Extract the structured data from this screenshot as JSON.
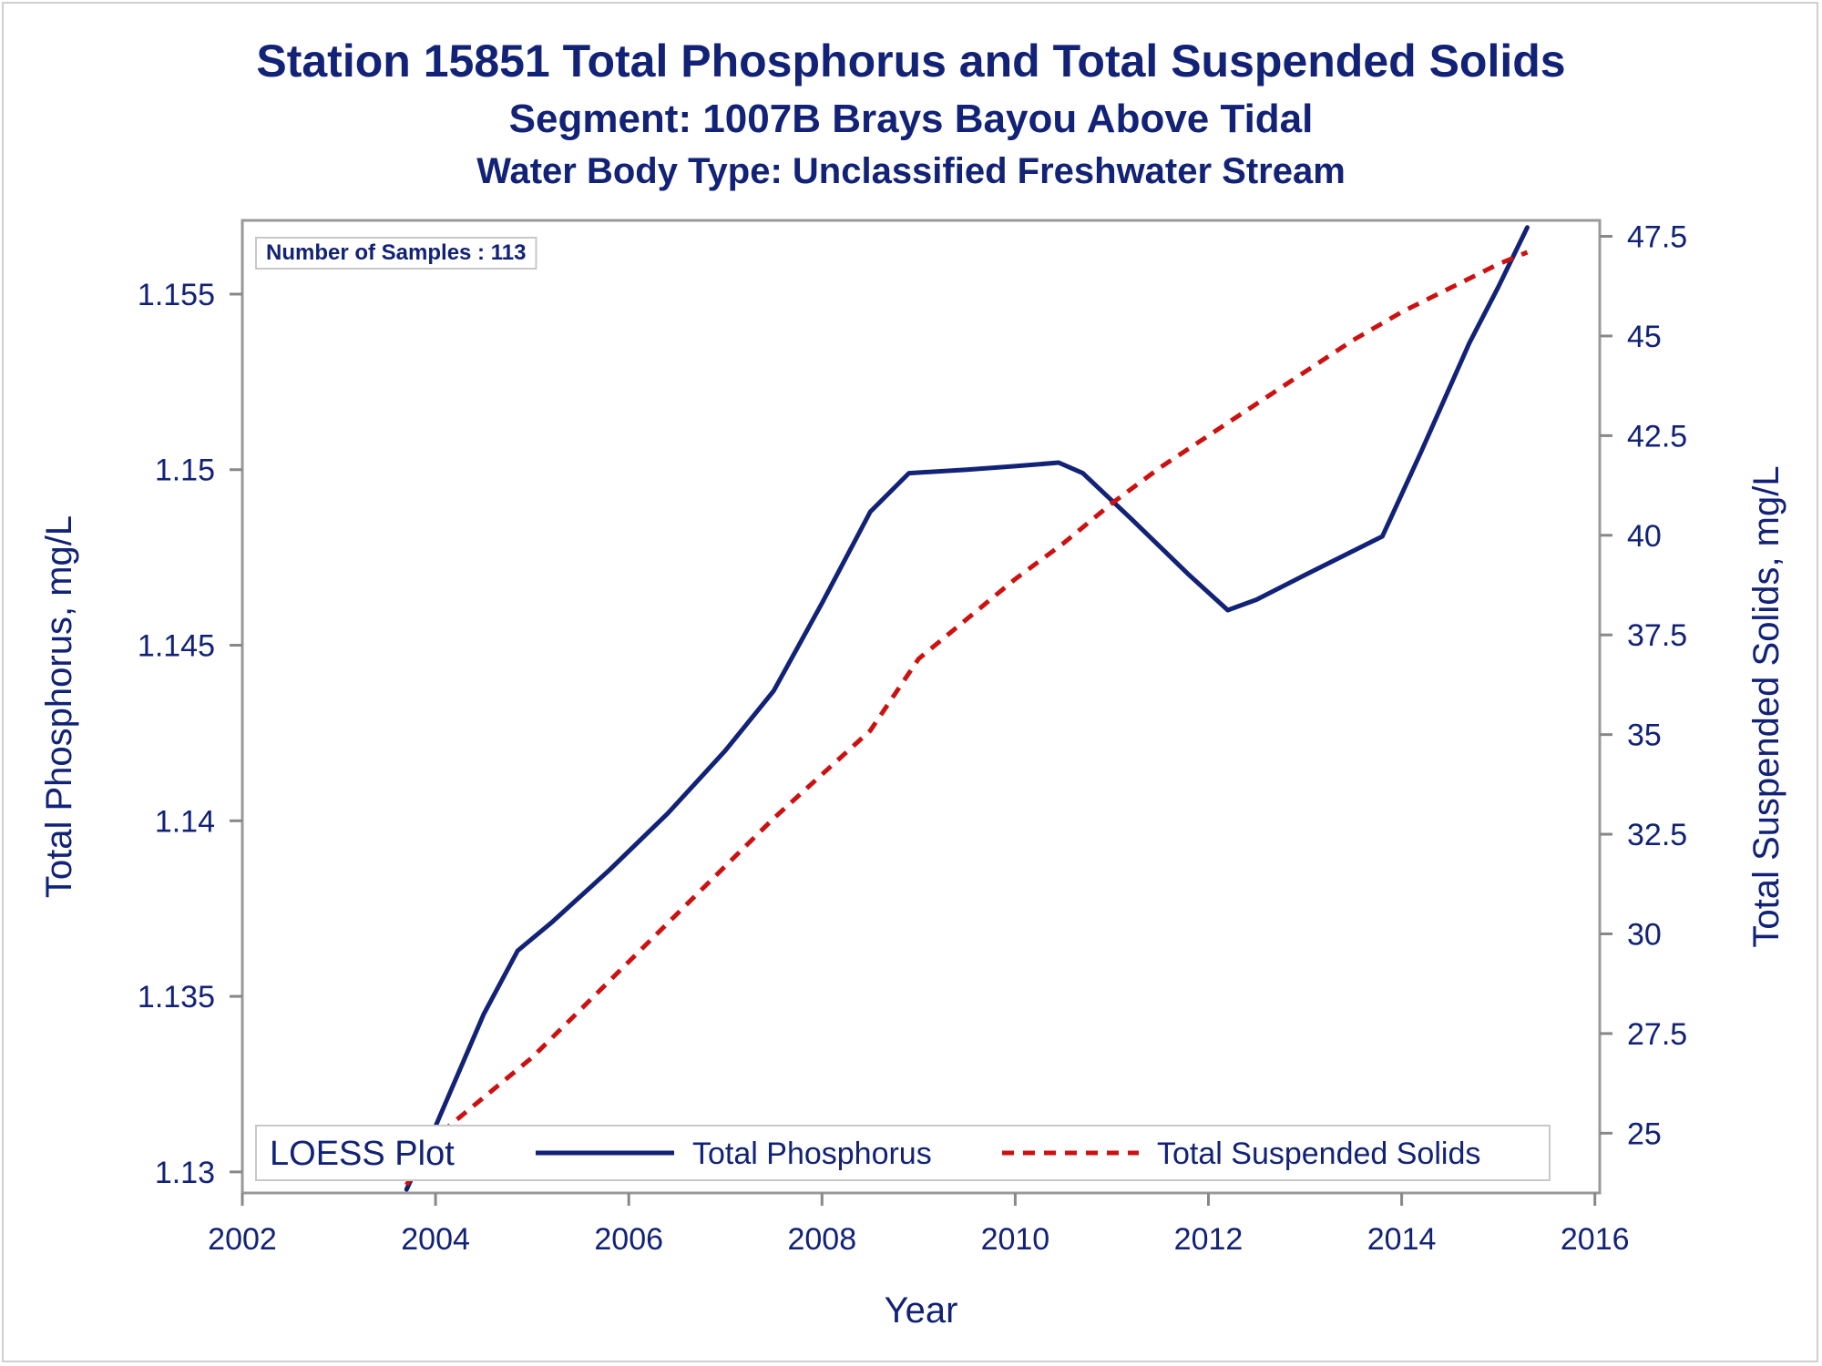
{
  "chart_data": {
    "type": "line",
    "title": "Station 15851  Total Phosphorus and Total Suspended Solids",
    "subtitle": "Segment: 1007B  Brays Bayou Above Tidal",
    "subtitle2": "Water Body Type: Unclassified Freshwater Stream",
    "xlabel": "Year",
    "ylabel_left": "Total Phosphorus, mg/L",
    "ylabel_right": "Total Suspended Solids, mg/L",
    "xlim": [
      2002,
      2016.05
    ],
    "ylim_left": [
      1.1294,
      1.1571
    ],
    "ylim_right": [
      23.5,
      47.9
    ],
    "x_ticks": [
      2002,
      2004,
      2006,
      2008,
      2010,
      2012,
      2014,
      2016
    ],
    "y_left_ticks": [
      "1.13",
      "1.135",
      "1.14",
      "1.145",
      "1.15",
      "1.155"
    ],
    "y_left_tick_values": [
      1.13,
      1.135,
      1.14,
      1.145,
      1.15,
      1.155
    ],
    "y_right_ticks": [
      "25",
      "27.5",
      "30",
      "32.5",
      "35",
      "37.5",
      "40",
      "42.5",
      "45",
      "47.5"
    ],
    "y_right_tick_values": [
      25,
      27.5,
      30,
      32.5,
      35,
      37.5,
      40,
      42.5,
      45,
      47.5
    ],
    "annotation": "Number of Samples : 113",
    "legend": {
      "title": "LOESS Plot",
      "position": "bottom-inside",
      "entries": [
        "Total Phosphorus",
        "Total Suspended Solids"
      ]
    },
    "series": [
      {
        "name": "Total Phosphorus",
        "axis": "left",
        "color": "#112277",
        "style": "solid",
        "x": [
          2003.7,
          2004.0,
          2004.5,
          2004.85,
          2005.2,
          2005.8,
          2006.4,
          2007.0,
          2007.5,
          2008.0,
          2008.5,
          2008.9,
          2009.5,
          2010.0,
          2010.45,
          2010.7,
          2011.2,
          2011.8,
          2012.2,
          2012.5,
          2013.0,
          2013.8,
          2014.2,
          2014.7,
          2015.0,
          2015.3
        ],
        "y": [
          1.1295,
          1.1313,
          1.1345,
          1.1363,
          1.1371,
          1.1386,
          1.1402,
          1.142,
          1.1437,
          1.1462,
          1.1488,
          1.1499,
          1.15,
          1.1501,
          1.1502,
          1.1499,
          1.1486,
          1.147,
          1.146,
          1.1463,
          1.147,
          1.1481,
          1.1505,
          1.1536,
          1.1552,
          1.1569
        ]
      },
      {
        "name": "Total Suspended Solids",
        "axis": "right",
        "color": "#cc1111",
        "style": "dashed",
        "x": [
          2003.7,
          2004.0,
          2004.5,
          2005.0,
          2005.5,
          2006.0,
          2006.5,
          2007.0,
          2007.5,
          2008.0,
          2008.5,
          2009.0,
          2009.5,
          2010.0,
          2010.5,
          2011.0,
          2011.5,
          2012.0,
          2012.5,
          2013.0,
          2013.5,
          2014.0,
          2014.5,
          2015.0,
          2015.3
        ],
        "y": [
          23.7,
          24.9,
          25.9,
          26.9,
          28.1,
          29.3,
          30.5,
          31.7,
          32.9,
          34.0,
          35.1,
          36.9,
          37.9,
          38.9,
          39.8,
          40.8,
          41.7,
          42.5,
          43.3,
          44.1,
          44.9,
          45.6,
          46.2,
          46.8,
          47.1
        ]
      }
    ]
  }
}
